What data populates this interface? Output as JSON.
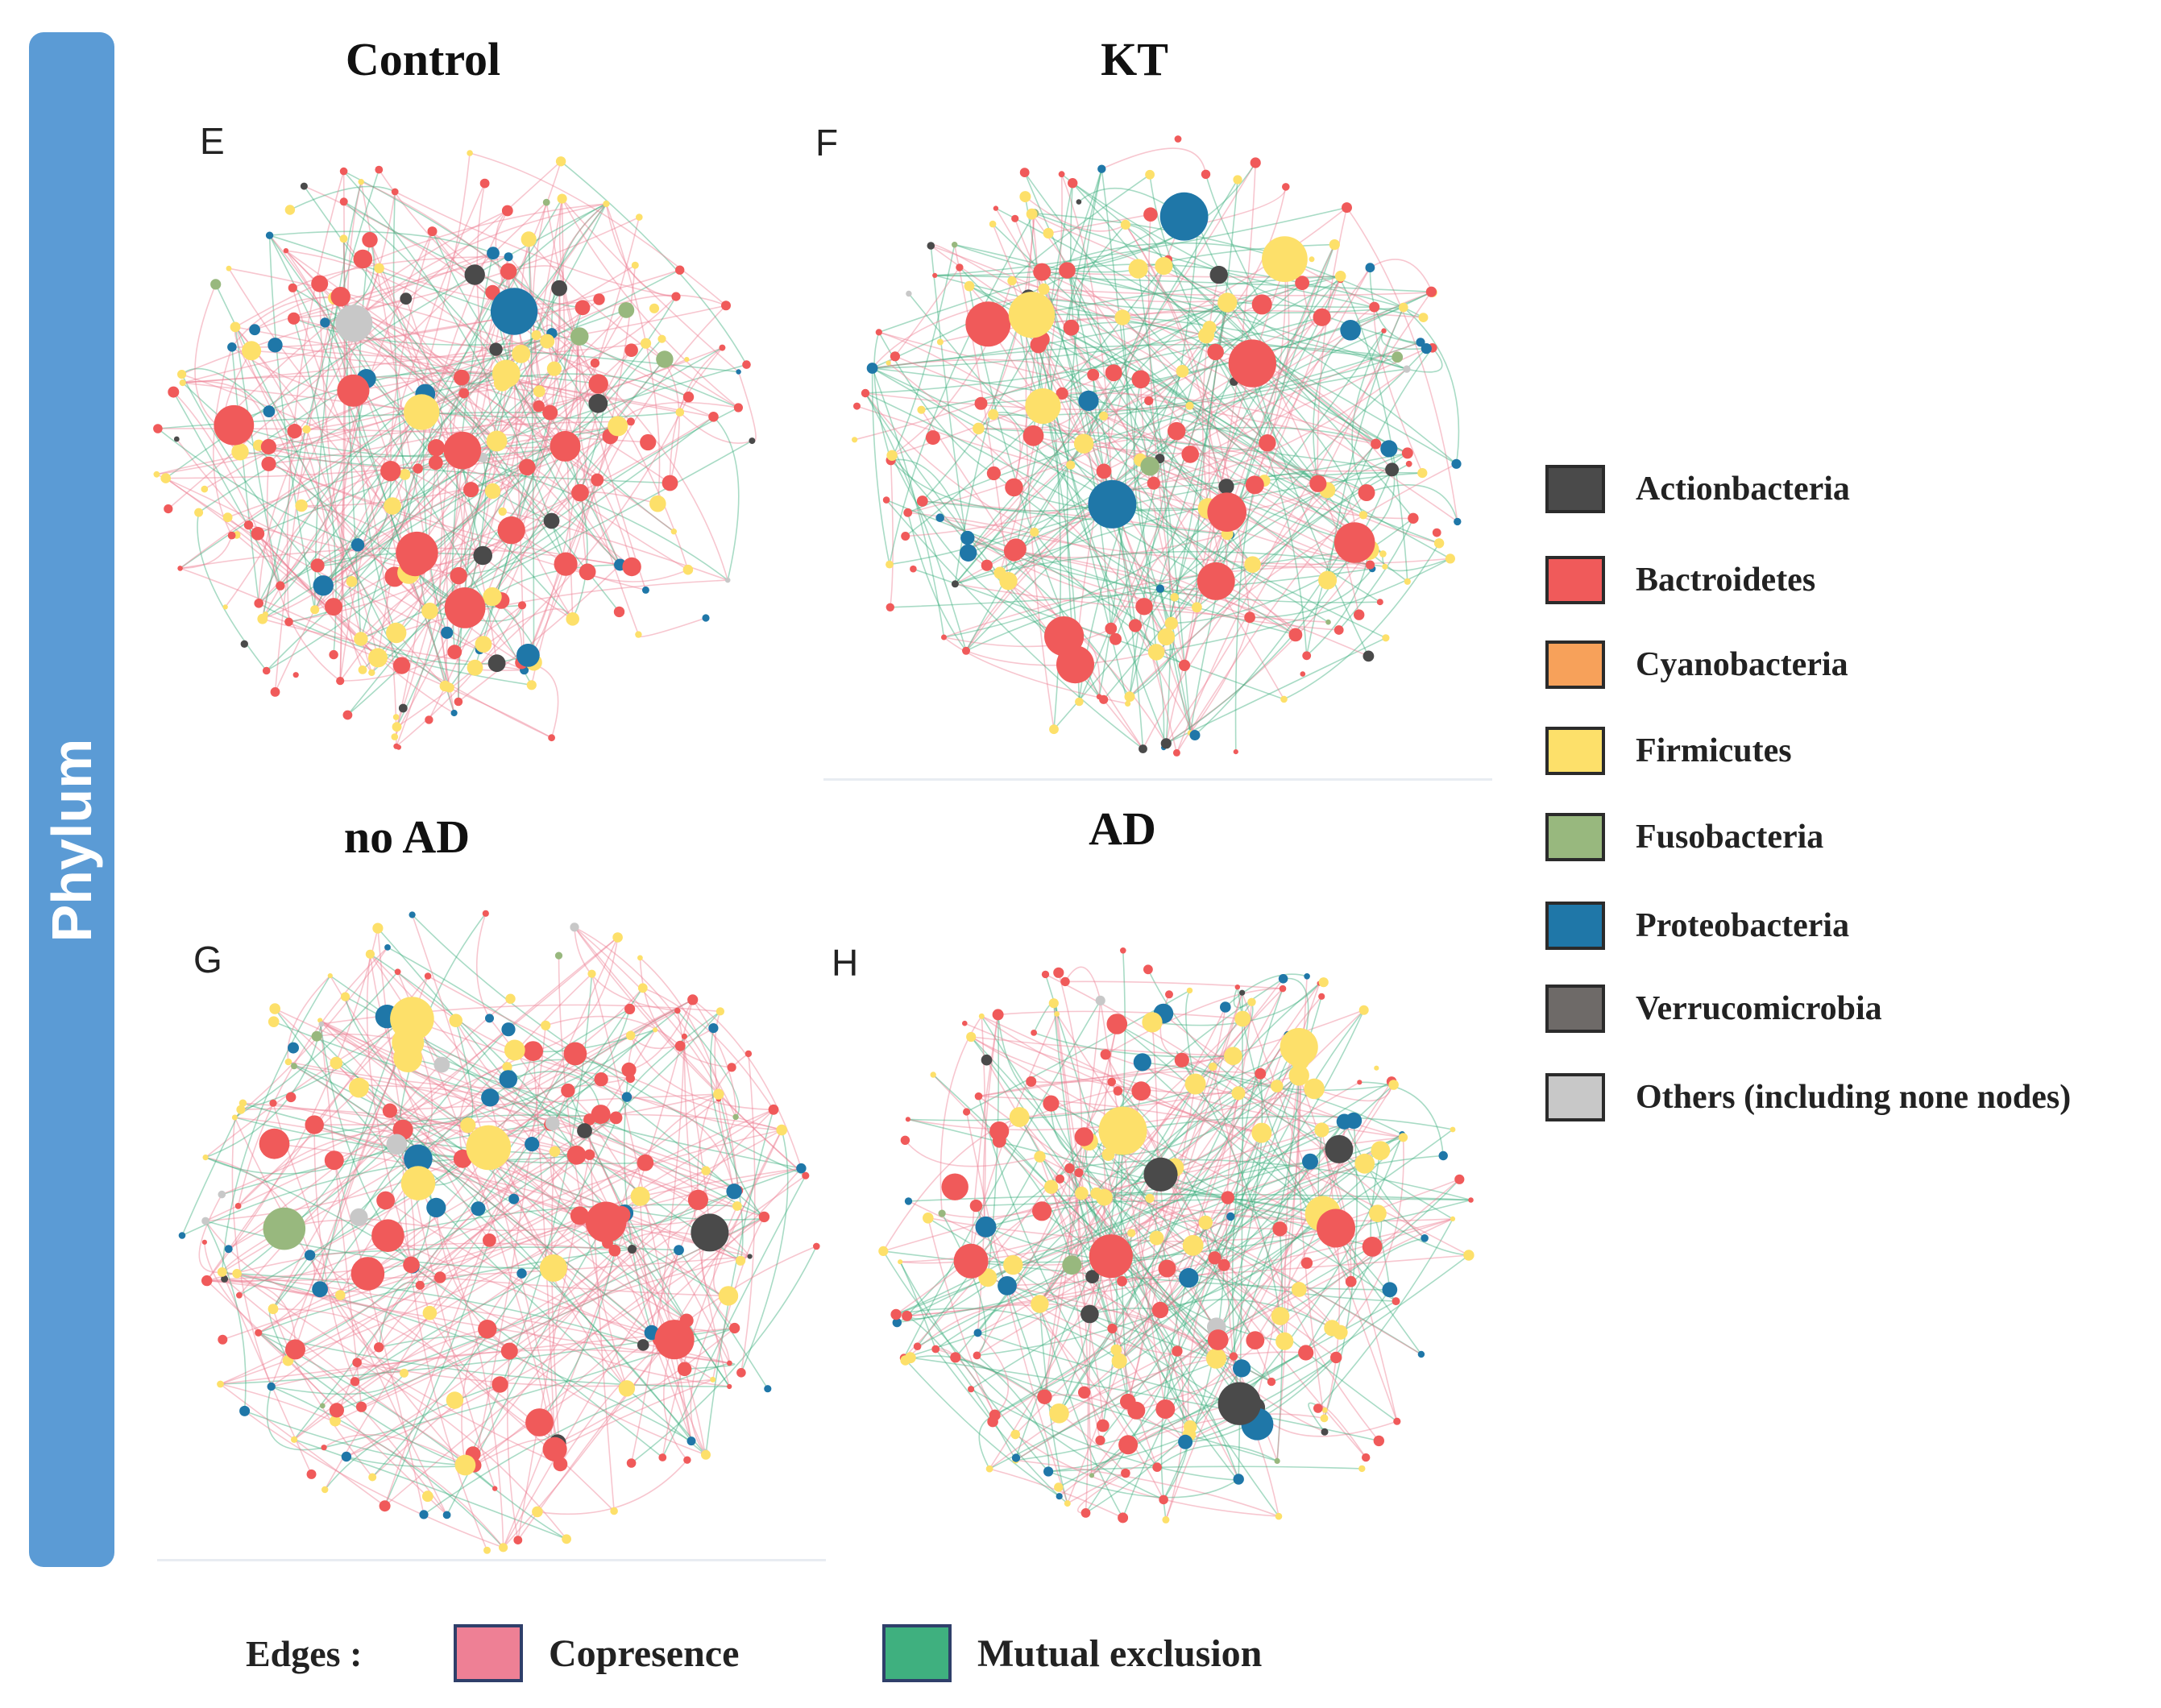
{
  "side_label": "Phylum",
  "panels": [
    {
      "id": "E",
      "title": "Control",
      "letter": "E",
      "seed": 11,
      "mix": 0.35
    },
    {
      "id": "F",
      "title": "KT",
      "letter": "F",
      "seed": 23,
      "mix": 0.6
    },
    {
      "id": "G",
      "title": "no AD",
      "letter": "G",
      "seed": 37,
      "mix": 0.3
    },
    {
      "id": "H",
      "title": "AD",
      "letter": "H",
      "seed": 51,
      "mix": 0.55
    }
  ],
  "legend": {
    "items": [
      {
        "name": "actionbacteria",
        "label": "Actionbacteria",
        "color": "#4a4a4a"
      },
      {
        "name": "bactroidetes",
        "label": "Bactroidetes",
        "color": "#f05a5a"
      },
      {
        "name": "cyanobacteria",
        "label": "Cyanobacteria",
        "color": "#f7a15a"
      },
      {
        "name": "firmicutes",
        "label": "Firmicutes",
        "color": "#fde06a"
      },
      {
        "name": "fusobacteria",
        "label": "Fusobacteria",
        "color": "#98b87e"
      },
      {
        "name": "proteobacteria",
        "label": "Proteobacteria",
        "color": "#1f77a8"
      },
      {
        "name": "verrucomicrobia",
        "label": "Verrucomicrobia",
        "color": "#6e6a68"
      },
      {
        "name": "others",
        "label": "Others (including none nodes)",
        "color": "#c8c8c8"
      }
    ]
  },
  "edges_legend": {
    "title": "Edges :",
    "copresence": {
      "label": "Copresence",
      "color": "#ee8095"
    },
    "mutual_exclusion": {
      "label": "Mutual exclusion",
      "color": "#3fb07f"
    }
  }
}
